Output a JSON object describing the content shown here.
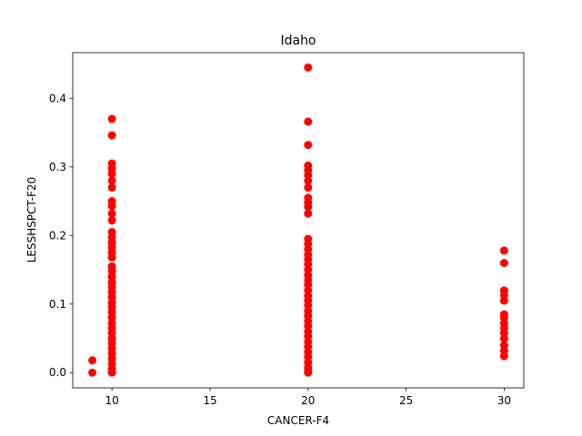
{
  "chart_data": {
    "type": "scatter",
    "title": "Idaho",
    "xlabel": "CANCER-F4",
    "ylabel": "LESSHSPCT-F20",
    "xlim": [
      8,
      31
    ],
    "ylim": [
      -0.0222,
      0.4666
    ],
    "x_ticks": [
      10,
      15,
      20,
      25,
      30
    ],
    "x_tick_labels": [
      "10",
      "15",
      "20",
      "25",
      "30"
    ],
    "y_ticks": [
      0.0,
      0.1,
      0.2,
      0.3,
      0.4
    ],
    "y_tick_labels": [
      "0.0",
      "0.1",
      "0.2",
      "0.3",
      "0.4"
    ],
    "grid": false,
    "marker_color": "#ff0000",
    "series": [
      {
        "points": [
          [
            9,
            0.0
          ],
          [
            9,
            0.018
          ],
          [
            10,
            0.37
          ],
          [
            10,
            0.346
          ],
          [
            10,
            0.305
          ],
          [
            10,
            0.298
          ],
          [
            10,
            0.29
          ],
          [
            10,
            0.28
          ],
          [
            10,
            0.27
          ],
          [
            10,
            0.25
          ],
          [
            10,
            0.243
          ],
          [
            10,
            0.232
          ],
          [
            10,
            0.222
          ],
          [
            10,
            0.205
          ],
          [
            10,
            0.198
          ],
          [
            10,
            0.19
          ],
          [
            10,
            0.183
          ],
          [
            10,
            0.175
          ],
          [
            10,
            0.168
          ],
          [
            10,
            0.155
          ],
          [
            10,
            0.148
          ],
          [
            10,
            0.14
          ],
          [
            10,
            0.132
          ],
          [
            10,
            0.125
          ],
          [
            10,
            0.118
          ],
          [
            10,
            0.11
          ],
          [
            10,
            0.102
          ],
          [
            10,
            0.095
          ],
          [
            10,
            0.088
          ],
          [
            10,
            0.08
          ],
          [
            10,
            0.072
          ],
          [
            10,
            0.065
          ],
          [
            10,
            0.058
          ],
          [
            10,
            0.05
          ],
          [
            10,
            0.043
          ],
          [
            10,
            0.035
          ],
          [
            10,
            0.028
          ],
          [
            10,
            0.02
          ],
          [
            10,
            0.012
          ],
          [
            10,
            0.005
          ],
          [
            10,
            0.0
          ],
          [
            20,
            0.445
          ],
          [
            20,
            0.366
          ],
          [
            20,
            0.332
          ],
          [
            20,
            0.302
          ],
          [
            20,
            0.295
          ],
          [
            20,
            0.288
          ],
          [
            20,
            0.28
          ],
          [
            20,
            0.27
          ],
          [
            20,
            0.255
          ],
          [
            20,
            0.248
          ],
          [
            20,
            0.242
          ],
          [
            20,
            0.232
          ],
          [
            20,
            0.195
          ],
          [
            20,
            0.188
          ],
          [
            20,
            0.18
          ],
          [
            20,
            0.172
          ],
          [
            20,
            0.165
          ],
          [
            20,
            0.158
          ],
          [
            20,
            0.15
          ],
          [
            20,
            0.142
          ],
          [
            20,
            0.135
          ],
          [
            20,
            0.128
          ],
          [
            20,
            0.12
          ],
          [
            20,
            0.112
          ],
          [
            20,
            0.105
          ],
          [
            20,
            0.098
          ],
          [
            20,
            0.09
          ],
          [
            20,
            0.083
          ],
          [
            20,
            0.075
          ],
          [
            20,
            0.068
          ],
          [
            20,
            0.06
          ],
          [
            20,
            0.053
          ],
          [
            20,
            0.045
          ],
          [
            20,
            0.038
          ],
          [
            20,
            0.03
          ],
          [
            20,
            0.023
          ],
          [
            20,
            0.015
          ],
          [
            20,
            0.008
          ],
          [
            20,
            0.003
          ],
          [
            20,
            0.0
          ],
          [
            30,
            0.178
          ],
          [
            30,
            0.16
          ],
          [
            30,
            0.12
          ],
          [
            30,
            0.113
          ],
          [
            30,
            0.105
          ],
          [
            30,
            0.085
          ],
          [
            30,
            0.08
          ],
          [
            30,
            0.072
          ],
          [
            30,
            0.065
          ],
          [
            30,
            0.058
          ],
          [
            30,
            0.05
          ],
          [
            30,
            0.04
          ],
          [
            30,
            0.032
          ],
          [
            30,
            0.024
          ]
        ]
      }
    ]
  }
}
